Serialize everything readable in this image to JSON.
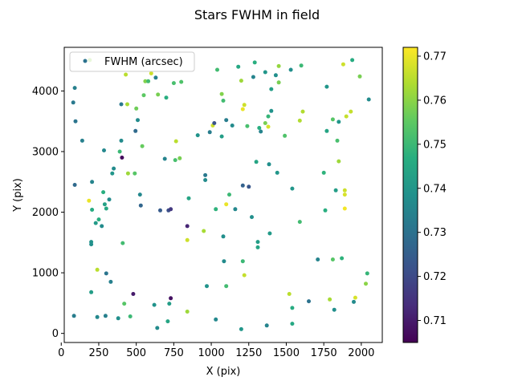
{
  "chart_data": {
    "type": "scatter",
    "title": "Stars FWHM in field",
    "xlabel": "X (pix)",
    "ylabel": "Y (pix)",
    "xlim": [
      20,
      2140
    ],
    "ylim": [
      -150,
      4720
    ],
    "xticks": [
      0,
      250,
      500,
      750,
      1000,
      1250,
      1500,
      1750,
      2000
    ],
    "yticks": [
      0,
      1000,
      2000,
      3000,
      4000
    ],
    "grid": false,
    "legend": {
      "label": "FWHM (arcsec)",
      "placement": "upper-left"
    },
    "colorbar": {
      "colormap": "viridis",
      "range": [
        0.705,
        0.772
      ],
      "ticks": [
        0.71,
        0.72,
        0.73,
        0.74,
        0.75,
        0.76,
        0.77
      ]
    },
    "points": [
      [
        80,
        3810,
        0.732
      ],
      [
        90,
        4050,
        0.734
      ],
      [
        95,
        3500,
        0.731
      ],
      [
        90,
        2450,
        0.728
      ],
      [
        85,
        290,
        0.733
      ],
      [
        140,
        3180,
        0.734
      ],
      [
        190,
        4510,
        0.76
      ],
      [
        185,
        2190,
        0.77
      ],
      [
        200,
        1510,
        0.739
      ],
      [
        200,
        1470,
        0.738
      ],
      [
        200,
        680,
        0.742
      ],
      [
        205,
        2040,
        0.746
      ],
      [
        205,
        2500,
        0.735
      ],
      [
        230,
        1820,
        0.741
      ],
      [
        240,
        270,
        0.736
      ],
      [
        240,
        1050,
        0.765
      ],
      [
        250,
        1880,
        0.747
      ],
      [
        270,
        1770,
        0.737
      ],
      [
        280,
        2330,
        0.747
      ],
      [
        285,
        3020,
        0.736
      ],
      [
        290,
        2130,
        0.743
      ],
      [
        295,
        290,
        0.734
      ],
      [
        300,
        2060,
        0.745
      ],
      [
        300,
        990,
        0.731
      ],
      [
        320,
        2210,
        0.737
      ],
      [
        330,
        850,
        0.734
      ],
      [
        340,
        2640,
        0.74
      ],
      [
        350,
        2720,
        0.737
      ],
      [
        380,
        250,
        0.738
      ],
      [
        390,
        3000,
        0.75
      ],
      [
        400,
        3180,
        0.737
      ],
      [
        400,
        3780,
        0.732
      ],
      [
        405,
        2900,
        0.707
      ],
      [
        410,
        1490,
        0.751
      ],
      [
        420,
        490,
        0.754
      ],
      [
        430,
        4270,
        0.765
      ],
      [
        440,
        3780,
        0.763
      ],
      [
        445,
        2640,
        0.762
      ],
      [
        460,
        280,
        0.75
      ],
      [
        480,
        650,
        0.71
      ],
      [
        490,
        2640,
        0.754
      ],
      [
        495,
        3340,
        0.728
      ],
      [
        500,
        3710,
        0.757
      ],
      [
        510,
        3520,
        0.737
      ],
      [
        525,
        2290,
        0.736
      ],
      [
        530,
        2110,
        0.727
      ],
      [
        540,
        3090,
        0.756
      ],
      [
        550,
        3930,
        0.755
      ],
      [
        560,
        4160,
        0.759
      ],
      [
        580,
        4160,
        0.751
      ],
      [
        600,
        4290,
        0.767
      ],
      [
        620,
        470,
        0.739
      ],
      [
        630,
        4220,
        0.734
      ],
      [
        640,
        90,
        0.737
      ],
      [
        645,
        3940,
        0.758
      ],
      [
        660,
        2030,
        0.724
      ],
      [
        690,
        2880,
        0.735
      ],
      [
        700,
        3890,
        0.747
      ],
      [
        710,
        200,
        0.744
      ],
      [
        715,
        2030,
        0.721
      ],
      [
        720,
        490,
        0.742
      ],
      [
        730,
        580,
        0.708
      ],
      [
        730,
        2050,
        0.716
      ],
      [
        750,
        4130,
        0.752
      ],
      [
        760,
        2860,
        0.752
      ],
      [
        765,
        3170,
        0.765
      ],
      [
        790,
        2890,
        0.758
      ],
      [
        800,
        4150,
        0.753
      ],
      [
        840,
        1770,
        0.712
      ],
      [
        840,
        360,
        0.762
      ],
      [
        840,
        1540,
        0.767
      ],
      [
        850,
        2230,
        0.744
      ],
      [
        910,
        3270,
        0.739
      ],
      [
        950,
        1690,
        0.763
      ],
      [
        960,
        2610,
        0.732
      ],
      [
        970,
        780,
        0.739
      ],
      [
        960,
        2530,
        0.737
      ],
      [
        990,
        3320,
        0.733
      ],
      [
        1010,
        3430,
        0.767
      ],
      [
        1020,
        3470,
        0.722
      ],
      [
        1030,
        2050,
        0.748
      ],
      [
        1030,
        230,
        0.736
      ],
      [
        1040,
        4350,
        0.751
      ],
      [
        1070,
        3950,
        0.759
      ],
      [
        1070,
        3250,
        0.742
      ],
      [
        1080,
        3840,
        0.751
      ],
      [
        1080,
        1600,
        0.738
      ],
      [
        1085,
        1190,
        0.737
      ],
      [
        1100,
        3520,
        0.733
      ],
      [
        1100,
        2130,
        0.77
      ],
      [
        1100,
        780,
        0.751
      ],
      [
        1120,
        2290,
        0.75
      ],
      [
        1140,
        3430,
        0.737
      ],
      [
        1160,
        2050,
        0.736
      ],
      [
        1180,
        4400,
        0.745
      ],
      [
        1200,
        4170,
        0.762
      ],
      [
        1200,
        70,
        0.74
      ],
      [
        1210,
        1190,
        0.75
      ],
      [
        1210,
        2440,
        0.726
      ],
      [
        1210,
        3700,
        0.77
      ],
      [
        1220,
        960,
        0.766
      ],
      [
        1220,
        3770,
        0.767
      ],
      [
        1240,
        3420,
        0.752
      ],
      [
        1250,
        2420,
        0.723
      ],
      [
        1270,
        1920,
        0.738
      ],
      [
        1280,
        4230,
        0.735
      ],
      [
        1290,
        4470,
        0.747
      ],
      [
        1300,
        2830,
        0.744
      ],
      [
        1310,
        1510,
        0.742
      ],
      [
        1310,
        1420,
        0.744
      ],
      [
        1320,
        3390,
        0.747
      ],
      [
        1330,
        3330,
        0.735
      ],
      [
        1360,
        4310,
        0.74
      ],
      [
        1360,
        3470,
        0.758
      ],
      [
        1370,
        130,
        0.735
      ],
      [
        1380,
        3580,
        0.749
      ],
      [
        1380,
        3410,
        0.768
      ],
      [
        1385,
        2790,
        0.738
      ],
      [
        1390,
        1650,
        0.741
      ],
      [
        1400,
        3670,
        0.739
      ],
      [
        1400,
        4030,
        0.742
      ],
      [
        1430,
        4260,
        0.738
      ],
      [
        1440,
        2650,
        0.74
      ],
      [
        1450,
        4410,
        0.761
      ],
      [
        1450,
        4140,
        0.758
      ],
      [
        1490,
        3260,
        0.753
      ],
      [
        1520,
        650,
        0.765
      ],
      [
        1530,
        4350,
        0.738
      ],
      [
        1540,
        420,
        0.746
      ],
      [
        1540,
        160,
        0.745
      ],
      [
        1540,
        2390,
        0.74
      ],
      [
        1590,
        3510,
        0.764
      ],
      [
        1590,
        1840,
        0.751
      ],
      [
        1600,
        4420,
        0.75
      ],
      [
        1610,
        3660,
        0.764
      ],
      [
        1650,
        530,
        0.73
      ],
      [
        1710,
        1220,
        0.735
      ],
      [
        1750,
        2650,
        0.748
      ],
      [
        1760,
        2030,
        0.747
      ],
      [
        1770,
        4070,
        0.74
      ],
      [
        1770,
        3340,
        0.744
      ],
      [
        1790,
        560,
        0.763
      ],
      [
        1810,
        3530,
        0.754
      ],
      [
        1810,
        1220,
        0.754
      ],
      [
        1820,
        390,
        0.738
      ],
      [
        1830,
        2360,
        0.742
      ],
      [
        1840,
        3180,
        0.752
      ],
      [
        1850,
        3490,
        0.74
      ],
      [
        1850,
        2840,
        0.762
      ],
      [
        1870,
        1240,
        0.748
      ],
      [
        1880,
        4440,
        0.767
      ],
      [
        1890,
        2290,
        0.768
      ],
      [
        1890,
        2360,
        0.767
      ],
      [
        1890,
        2060,
        0.771
      ],
      [
        1900,
        3580,
        0.766
      ],
      [
        1930,
        3660,
        0.766
      ],
      [
        1940,
        4510,
        0.746
      ],
      [
        1950,
        520,
        0.737
      ],
      [
        1960,
        590,
        0.768
      ],
      [
        1990,
        4240,
        0.758
      ],
      [
        2030,
        820,
        0.76
      ],
      [
        2040,
        990,
        0.749
      ],
      [
        2050,
        3860,
        0.737
      ]
    ]
  }
}
